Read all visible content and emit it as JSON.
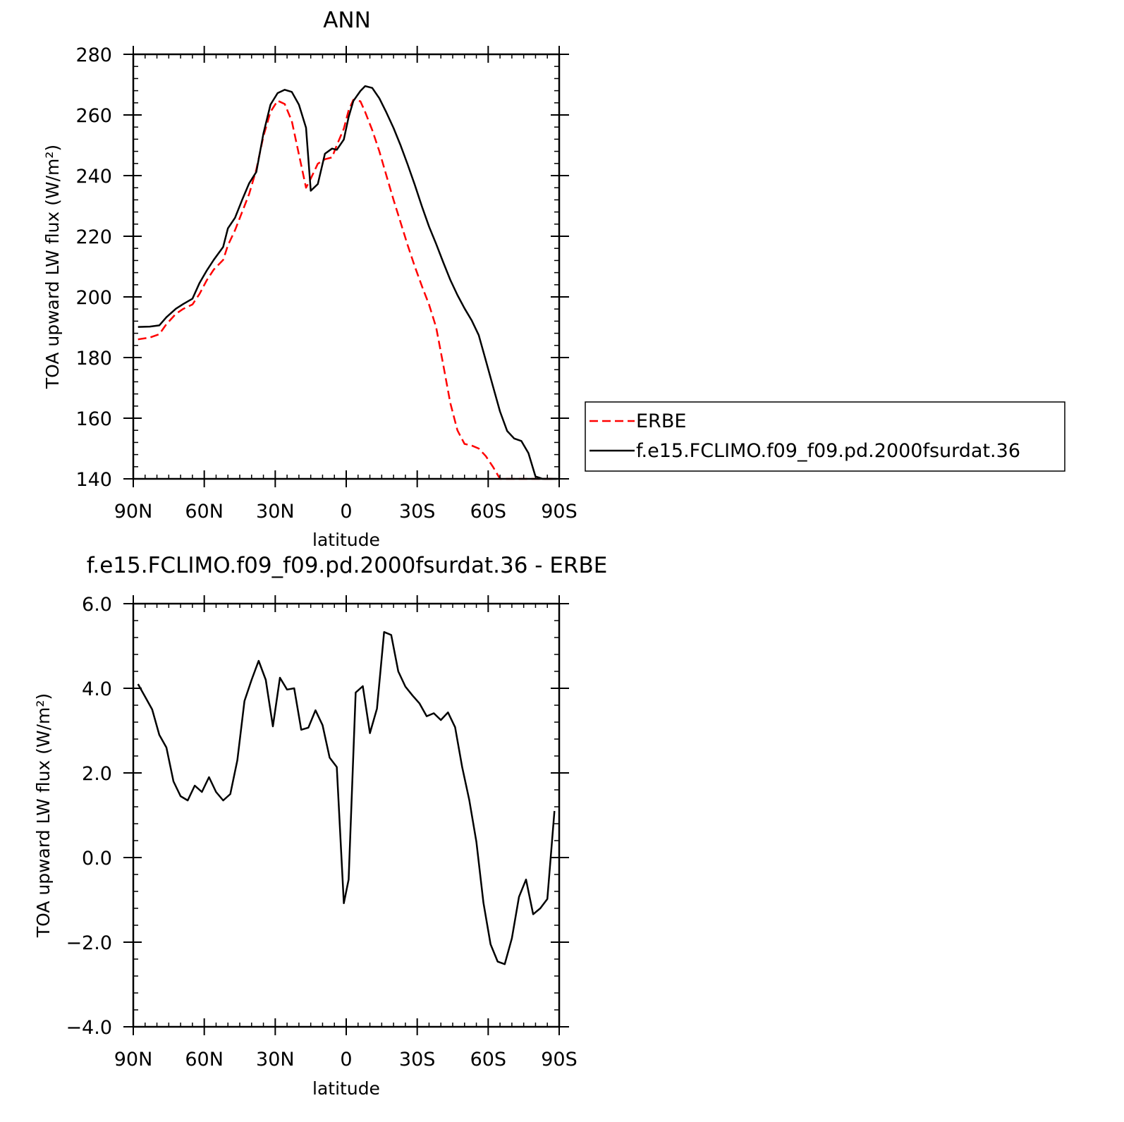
{
  "chart_data": [
    {
      "type": "line",
      "title": "ANN",
      "xlabel": "latitude",
      "ylabel": "TOA upward LW flux (W/m²)",
      "xlim": [
        90,
        -90
      ],
      "ylim": [
        140,
        280
      ],
      "x_ticks": [
        "90N",
        "60N",
        "30N",
        "0",
        "30S",
        "60S",
        "90S"
      ],
      "y_ticks": [
        "140",
        "160",
        "180",
        "200",
        "220",
        "240",
        "260",
        "280"
      ],
      "legend": {
        "placement": "right",
        "entries": [
          "ERBE",
          "f.e15.FCLIMO.f09_f09.pd.2000fsurdat.36"
        ]
      },
      "x": [
        88,
        83,
        79,
        76,
        72,
        69,
        65,
        62,
        59,
        56,
        52,
        50,
        47,
        44,
        41,
        38,
        35,
        32,
        29,
        26,
        23,
        20,
        17,
        15,
        12,
        9,
        6,
        4,
        1,
        -1,
        -3,
        -6,
        -8,
        -11,
        -14,
        -17,
        -20,
        -23,
        -26,
        -29,
        -32,
        -35,
        -38,
        -41,
        -44,
        -47,
        -50,
        -53,
        -56,
        -59,
        -62,
        -65,
        -68,
        -71,
        -74,
        -77,
        -80,
        -83,
        -86,
        -89
      ],
      "series": [
        {
          "name": "ERBE",
          "color": "#ff0000",
          "dash": "dashed",
          "values": [
            186,
            186.6,
            187.7,
            191,
            194.4,
            196,
            197.5,
            201,
            205.4,
            209,
            212.2,
            217,
            222,
            228,
            234,
            242,
            253,
            261,
            264.7,
            263.6,
            258,
            247,
            236,
            239,
            243.9,
            245.4,
            246,
            250,
            255.5,
            261.5,
            265,
            264.5,
            261,
            255,
            248,
            240,
            232,
            224.5,
            217,
            210,
            203.5,
            197.5,
            190,
            177.6,
            165,
            156,
            151.5,
            151,
            150,
            147.5,
            144,
            140,
            140,
            140,
            140,
            140,
            140,
            140,
            140,
            140
          ]
        },
        {
          "name": "f.e15.FCLIMO.f09_f09.pd.2000fsurdat.36",
          "color": "#000000",
          "dash": "solid",
          "values": [
            190.1,
            190.2,
            190.6,
            193.3,
            196.1,
            197.6,
            199.4,
            204.6,
            208.6,
            212.2,
            216.5,
            222.6,
            226.1,
            232,
            237.5,
            241.2,
            253.9,
            263.4,
            267.2,
            268.3,
            267.6,
            263.4,
            255.8,
            235,
            237.2,
            247.2,
            248.9,
            248.5,
            251.9,
            259.3,
            264.6,
            267.9,
            269.5,
            268.9,
            265.5,
            260.8,
            255.7,
            249.9,
            243.6,
            236.9,
            229.8,
            223.2,
            217.5,
            211.4,
            205.6,
            200.6,
            196.2,
            192.3,
            187.4,
            179,
            170.6,
            162.2,
            155.8,
            153.3,
            152.5,
            148.5,
            140.8,
            140,
            140,
            140
          ]
        }
      ]
    },
    {
      "type": "line",
      "title": "f.e15.FCLIMO.f09_f09.pd.2000fsurdat.36 - ERBE",
      "xlabel": "latitude",
      "ylabel": "TOA upward LW flux (W/m²)",
      "xlim": [
        90,
        -90
      ],
      "ylim": [
        -4,
        6
      ],
      "x_ticks": [
        "90N",
        "60N",
        "30N",
        "0",
        "30S",
        "60S",
        "90S"
      ],
      "y_ticks": [
        "−4.0",
        "−2.0",
        "0.0",
        "2.0",
        "4.0",
        "6.0"
      ],
      "x": [
        88,
        85,
        82,
        79,
        76,
        73,
        70,
        67,
        64,
        61,
        58,
        55,
        52,
        49,
        46,
        43,
        40,
        37,
        34,
        31,
        28,
        25,
        22,
        19,
        16,
        13,
        10,
        7,
        4,
        1,
        -1,
        -4,
        -7,
        -10,
        -13,
        -16,
        -19,
        -22,
        -25,
        -28,
        -31,
        -34,
        -37,
        -40,
        -43,
        -46,
        -49,
        -52,
        -55,
        -58,
        -61,
        -64,
        -67,
        -70,
        -73,
        -76,
        -79,
        -82,
        -85,
        -88
      ],
      "series": [
        {
          "name": "f.e15.FCLIMO.f09_f09.pd.2000fsurdat.36",
          "color": "#000000",
          "dash": "solid",
          "values": [
            4.1,
            3.8,
            3.5,
            2.9,
            2.6,
            1.8,
            1.45,
            1.35,
            1.7,
            1.55,
            1.9,
            1.55,
            1.35,
            1.5,
            2.3,
            3.7,
            4.2,
            4.65,
            4.2,
            3.1,
            4.25,
            3.97,
            4.0,
            3.02,
            3.07,
            3.48,
            3.13,
            2.36,
            2.14,
            -1.08,
            -0.52,
            3.9,
            4.05,
            2.94,
            3.52,
            5.33,
            5.26,
            4.4,
            4.04,
            3.83,
            3.64,
            3.34,
            3.41,
            3.25,
            3.43,
            3.08,
            2.14,
            1.36,
            0.37,
            -1.07,
            -2.05,
            -2.46,
            -2.52,
            -1.91,
            -0.93,
            -0.52,
            -1.34,
            -1.2,
            -0.98,
            1.1
          ]
        }
      ]
    }
  ]
}
